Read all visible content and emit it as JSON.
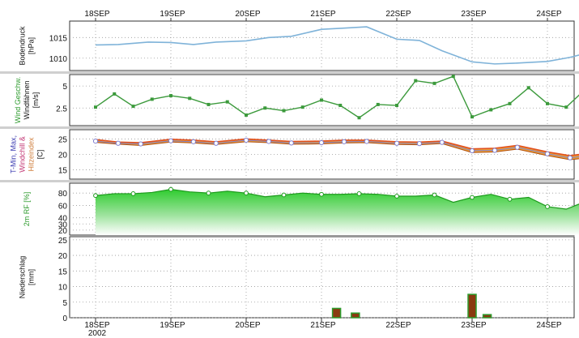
{
  "chart_data": [
    {
      "type": "line",
      "panel": "pressure",
      "ylabel_lines": [
        "Bodendruck",
        "[hPa]"
      ],
      "yticks": [
        1010,
        1015
      ],
      "ylim": [
        1007,
        1019
      ],
      "x_categories": [
        "18SEP",
        "19SEP",
        "20SEP",
        "21SEP",
        "22SEP",
        "23SEP",
        "24SEP"
      ],
      "series": [
        {
          "color": "#7fb3d9",
          "x": [
            0,
            0.3,
            0.7,
            1,
            1.3,
            1.6,
            2,
            2.3,
            2.6,
            3,
            3.3,
            3.6,
            4,
            4.3,
            4.6,
            5,
            5.3,
            5.6,
            6,
            6.3,
            6.6,
            7
          ],
          "values": [
            1013.2,
            1013.3,
            1013.9,
            1013.8,
            1013.3,
            1013.9,
            1014.2,
            1015.0,
            1015.3,
            1017.0,
            1017.3,
            1017.6,
            1014.6,
            1014.3,
            1011.8,
            1009.1,
            1008.6,
            1008.8,
            1009.2,
            1010.2,
            1011.6,
            1014.7
          ]
        }
      ]
    },
    {
      "type": "line",
      "panel": "wind",
      "ylabel_lines": [
        "Wind Geschw.",
        "Windfähnen",
        "[m/s]"
      ],
      "yticks": [
        2.5,
        5
      ],
      "ylim": [
        0.5,
        6.3
      ],
      "series": [
        {
          "color": "#3c9a3c",
          "x": [
            0,
            0.25,
            0.5,
            0.75,
            1,
            1.25,
            1.5,
            1.75,
            2,
            2.25,
            2.5,
            2.75,
            3,
            3.25,
            3.5,
            3.75,
            4,
            4.25,
            4.5,
            4.75,
            5,
            5.25,
            5.5,
            5.75,
            6,
            6.25,
            6.5,
            6.75,
            7
          ],
          "values": [
            2.6,
            4.1,
            2.7,
            3.5,
            3.9,
            3.6,
            2.9,
            3.2,
            1.7,
            2.5,
            2.2,
            2.6,
            3.4,
            2.8,
            1.4,
            2.9,
            2.8,
            5.6,
            5.3,
            6.1,
            1.5,
            2.3,
            3.0,
            4.8,
            3.0,
            2.6,
            4.6,
            5.0,
            1.5
          ]
        }
      ]
    },
    {
      "type": "area",
      "panel": "temperature",
      "ylabel_lines": [
        "T-Min, Max,",
        "Windchill &",
        "Hitzeindex",
        "[C]"
      ],
      "yticks": [
        15,
        20,
        25
      ],
      "ylim": [
        12,
        28
      ],
      "x": [
        0,
        0.3,
        0.6,
        1,
        1.3,
        1.6,
        2,
        2.3,
        2.6,
        3,
        3.3,
        3.6,
        4,
        4.3,
        4.6,
        5,
        5.3,
        5.6,
        6,
        6.3,
        6.6,
        7
      ],
      "series": [
        {
          "color": "#e05020",
          "values": [
            24.8,
            24.0,
            23.8,
            24.9,
            24.6,
            24.1,
            25.0,
            24.6,
            24.2,
            24.3,
            24.6,
            24.6,
            24.1,
            24.0,
            24.3,
            21.8,
            22.0,
            22.9,
            20.8,
            19.6,
            20.6,
            17.5
          ]
        },
        {
          "color": "#f0a030",
          "values": [
            23.9,
            23.3,
            22.9,
            24.0,
            23.7,
            23.2,
            24.1,
            23.8,
            23.3,
            23.4,
            23.7,
            23.8,
            23.2,
            23.1,
            23.5,
            20.6,
            20.8,
            21.7,
            19.6,
            18.3,
            19.0,
            15.8
          ]
        },
        {
          "color": "#8080d0",
          "markers": true,
          "values": [
            24.3,
            23.6,
            23.4,
            24.4,
            24.1,
            23.6,
            24.6,
            24.2,
            23.7,
            23.8,
            24.1,
            24.2,
            23.6,
            23.5,
            23.9,
            21.2,
            21.3,
            22.3,
            20.2,
            18.9,
            19.8,
            16.6
          ]
        }
      ]
    },
    {
      "type": "area",
      "panel": "humidity",
      "ylabel_lines": [
        "2m RF [%]"
      ],
      "yticks": [
        20,
        30,
        40,
        60,
        80
      ],
      "ylim": [
        12,
        96
      ],
      "x": [
        0,
        0.25,
        0.5,
        0.75,
        1,
        1.25,
        1.5,
        1.75,
        2,
        2.25,
        2.5,
        2.75,
        3,
        3.25,
        3.5,
        3.75,
        4,
        4.25,
        4.5,
        4.75,
        5,
        5.25,
        5.5,
        5.75,
        6,
        6.25,
        6.5,
        6.75,
        7
      ],
      "series": [
        {
          "color": "#3fcf3f",
          "values": [
            76,
            79,
            79,
            81,
            86,
            82,
            80,
            83,
            80,
            74,
            77,
            80,
            78,
            78,
            79,
            78,
            75,
            75,
            77,
            65,
            73,
            78,
            70,
            73,
            58,
            54,
            66,
            70,
            53
          ]
        }
      ]
    },
    {
      "type": "bar",
      "panel": "precipitation",
      "ylabel_lines": [
        "Niederschlag",
        "[mm]"
      ],
      "yticks": [
        0,
        5,
        10,
        15,
        20,
        25
      ],
      "ylim": [
        0,
        26
      ],
      "x": [
        3.2,
        3.45,
        5.0,
        5.2
      ],
      "values": [
        3.0,
        1.5,
        7.5,
        1.0
      ],
      "color": "#8a3a10",
      "edge_color": "#2d9c2d",
      "xlabels": [
        "18SEP",
        "19SEP",
        "20SEP",
        "21SEP",
        "22SEP",
        "23SEP",
        "24SEP"
      ],
      "year_label": "2002"
    }
  ],
  "axis_top_labels": [
    "18SEP",
    "19SEP",
    "20SEP",
    "21SEP",
    "22SEP",
    "23SEP",
    "24SEP"
  ]
}
